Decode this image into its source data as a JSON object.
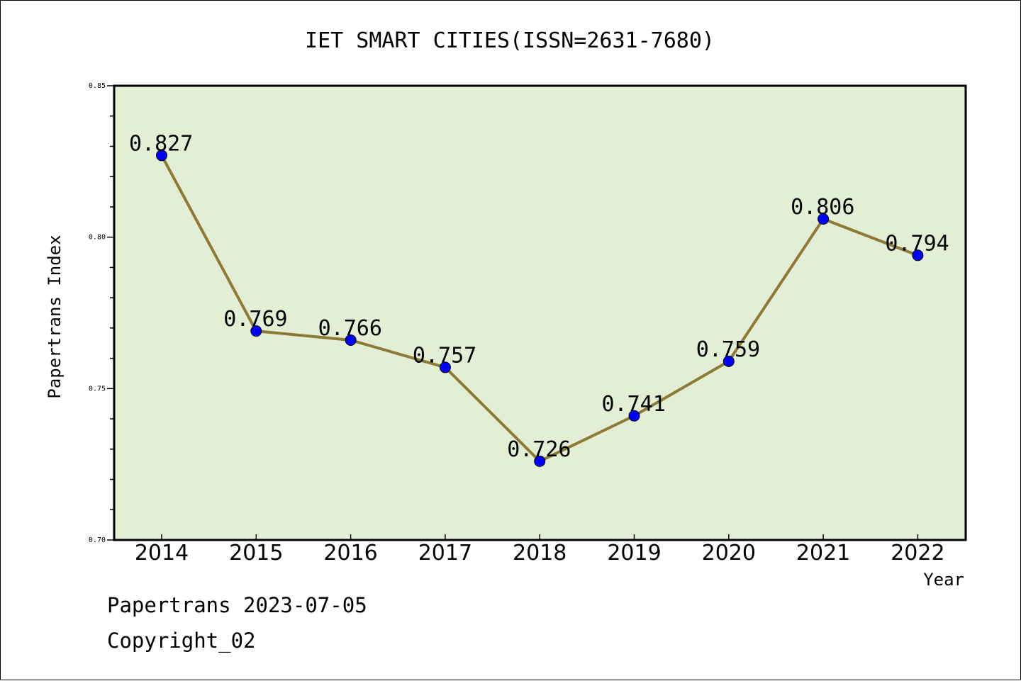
{
  "chart_data": {
    "type": "line",
    "title": "IET SMART CITIES(ISSN=2631-7680)",
    "xlabel": "Year",
    "ylabel": "Papertrans Index",
    "categories": [
      "2014",
      "2015",
      "2016",
      "2017",
      "2018",
      "2019",
      "2020",
      "2021",
      "2022"
    ],
    "series": [
      {
        "values": [
          0.827,
          0.769,
          0.766,
          0.757,
          0.726,
          0.741,
          0.759,
          0.806,
          0.794
        ]
      }
    ],
    "data_labels": [
      "0.827",
      "0.769",
      "0.766",
      "0.757",
      "0.726",
      "0.741",
      "0.759",
      "0.806",
      "0.794"
    ],
    "ylim": [
      0.7,
      0.85
    ],
    "yticks": [
      "0.70",
      "0.75",
      "0.80",
      "0.85"
    ],
    "grid": false,
    "legend": "none",
    "colors": {
      "plot_background": "#e2efd5",
      "line": "#8c7a35",
      "marker": "#0000ff",
      "axis": "#000000"
    }
  },
  "footer": {
    "line1": "Papertrans 2023-07-05",
    "line2": "Copyright_02"
  }
}
